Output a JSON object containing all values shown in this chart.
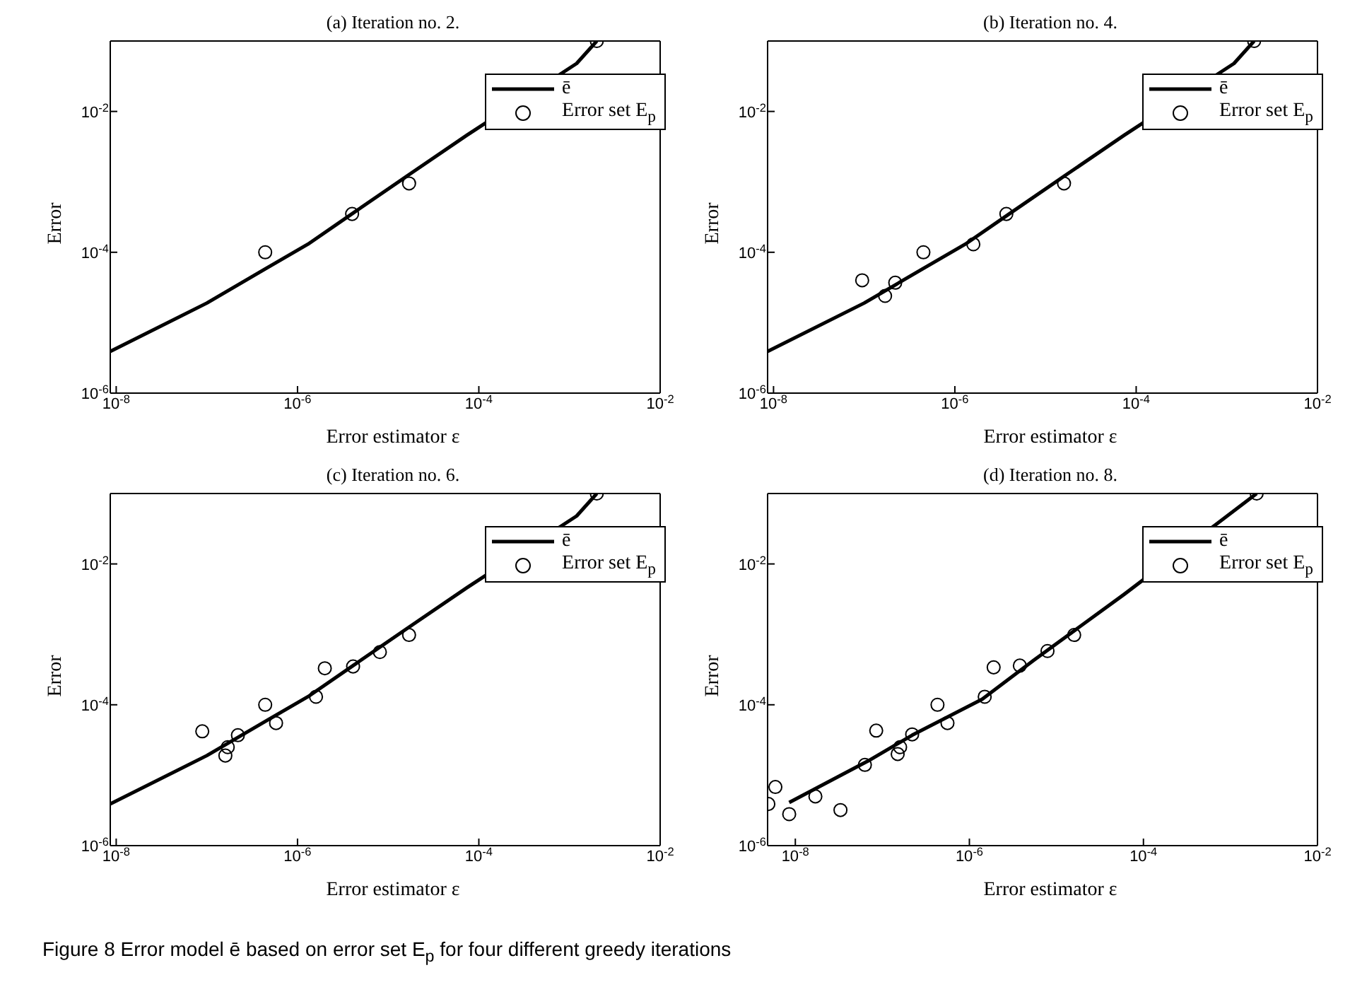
{
  "chart_data": [
    {
      "type": "line",
      "title": "(a) Iteration no. 2.",
      "xlabel": "Error estimator ε",
      "ylabel": "Error",
      "log": "xy",
      "grid": false,
      "legend": "top right",
      "xlim": [
        8.6e-09,
        0.01
      ],
      "ylim": [
        1e-06,
        0.1
      ],
      "xticks": [
        {
          "value": 1e-08,
          "label": "10$^{-8}$"
        },
        {
          "value": 1e-06,
          "label": "10$^{-6}$"
        },
        {
          "value": 0.0001,
          "label": "10$^{-4}$"
        },
        {
          "value": 0.01,
          "label": "10$^{-2}$"
        }
      ],
      "yticks": [
        {
          "value": 1e-06,
          "label": "10$^{-6}$"
        },
        {
          "value": 0.0001,
          "label": "10$^{-4}$"
        },
        {
          "value": 0.01,
          "label": "10$^{-2}$"
        }
      ],
      "series": [
        {
          "name": "ē",
          "type": "line",
          "color": "#000000",
          "line_style": "solid",
          "x": [
            8.6e-09,
            1e-07,
            4.4e-07,
            1.3e-06,
            4.1e-06,
            1.6e-05,
            7.4e-05,
            0.0012,
            0.002
          ],
          "values": [
            3.9e-06,
            1.9e-05,
            5.8e-05,
            0.00013,
            0.00036,
            0.0012,
            0.0046,
            0.048,
            0.1
          ]
        },
        {
          "name": "Error set E$_{p}$",
          "type": "scatter",
          "marker": "circle",
          "color": "#000000",
          "x": [
            4.4e-07,
            4e-06,
            1.7e-05,
            0.002
          ],
          "values": [
            0.0001,
            0.00035,
            0.00095,
            0.1
          ]
        }
      ]
    },
    {
      "type": "line",
      "title": "(b) Iteration no. 4.",
      "xlabel": "Error estimator ε",
      "ylabel": "Error",
      "log": "xy",
      "grid": false,
      "legend": "top right",
      "xlim": [
        8.6e-09,
        0.01
      ],
      "ylim": [
        1e-06,
        0.1
      ],
      "xticks": [
        {
          "value": 1e-08,
          "label": "10$^{-8}$"
        },
        {
          "value": 1e-06,
          "label": "10$^{-6}$"
        },
        {
          "value": 0.0001,
          "label": "10$^{-4}$"
        },
        {
          "value": 0.01,
          "label": "10$^{-2}$"
        }
      ],
      "yticks": [
        {
          "value": 1e-06,
          "label": "10$^{-6}$"
        },
        {
          "value": 0.0001,
          "label": "10$^{-4}$"
        },
        {
          "value": 0.01,
          "label": "10$^{-2}$"
        }
      ],
      "series": [
        {
          "name": "ē",
          "type": "line",
          "color": "#000000",
          "line_style": "solid",
          "x": [
            8.6e-09,
            1e-07,
            4.4e-07,
            1.3e-06,
            4.1e-06,
            1.6e-05,
            7.4e-05,
            0.0012,
            0.002
          ],
          "values": [
            3.9e-06,
            1.9e-05,
            5.8e-05,
            0.00013,
            0.00036,
            0.0012,
            0.0046,
            0.048,
            0.1
          ]
        },
        {
          "name": "Error set E$_{p}$",
          "type": "scatter",
          "marker": "circle",
          "color": "#000000",
          "x": [
            9.5e-08,
            1.7e-07,
            2.2e-07,
            4.5e-07,
            1.6e-06,
            3.7e-06,
            1.6e-05,
            0.002
          ],
          "values": [
            4e-05,
            2.4e-05,
            3.7e-05,
            0.0001,
            0.00013,
            0.00035,
            0.00095,
            0.1
          ]
        }
      ]
    },
    {
      "type": "line",
      "title": "(c) Iteration no. 6.",
      "xlabel": "Error estimator ε",
      "ylabel": "Error",
      "log": "xy",
      "grid": false,
      "legend": "top right",
      "xlim": [
        8.6e-09,
        0.01
      ],
      "ylim": [
        1e-06,
        0.1
      ],
      "xticks": [
        {
          "value": 1e-08,
          "label": "10$^{-8}$"
        },
        {
          "value": 1e-06,
          "label": "10$^{-6}$"
        },
        {
          "value": 0.0001,
          "label": "10$^{-4}$"
        },
        {
          "value": 0.01,
          "label": "10$^{-2}$"
        }
      ],
      "yticks": [
        {
          "value": 1e-06,
          "label": "10$^{-6}$"
        },
        {
          "value": 0.0001,
          "label": "10$^{-4}$"
        },
        {
          "value": 0.01,
          "label": "10$^{-2}$"
        }
      ],
      "series": [
        {
          "name": "ē",
          "type": "line",
          "color": "#000000",
          "line_style": "solid",
          "x": [
            8.6e-09,
            1e-07,
            4.4e-07,
            1.3e-06,
            4.1e-06,
            1.6e-05,
            7.4e-05,
            0.0012,
            0.002
          ],
          "values": [
            3.9e-06,
            1.9e-05,
            5.8e-05,
            0.00013,
            0.00036,
            0.0012,
            0.0046,
            0.048,
            0.1
          ]
        },
        {
          "name": "Error set E$_{p}$",
          "type": "scatter",
          "marker": "circle",
          "color": "#000000",
          "x": [
            8.9e-08,
            1.6e-07,
            1.7e-07,
            2.2e-07,
            4.4e-07,
            5.8e-07,
            1.6e-06,
            2e-06,
            4.1e-06,
            8.1e-06,
            1.7e-05,
            0.002
          ],
          "values": [
            4.2e-05,
            1.9e-05,
            2.5e-05,
            3.7e-05,
            0.0001,
            5.5e-05,
            0.00013,
            0.00033,
            0.00035,
            0.00056,
            0.00098,
            0.1
          ]
        }
      ]
    },
    {
      "type": "line",
      "title": "(d) Iteration no. 8.",
      "xlabel": "Error estimator ε",
      "ylabel": "Error",
      "log": "xy",
      "grid": false,
      "legend": "top right",
      "xlim": [
        4.8e-09,
        0.01
      ],
      "ylim": [
        1e-06,
        0.1
      ],
      "xticks": [
        {
          "value": 1e-08,
          "label": "10$^{-8}$"
        },
        {
          "value": 1e-06,
          "label": "10$^{-6}$"
        },
        {
          "value": 0.0001,
          "label": "10$^{-4}$"
        },
        {
          "value": 0.01,
          "label": "10$^{-2}$"
        }
      ],
      "yticks": [
        {
          "value": 1e-06,
          "label": "10$^{-6}$"
        },
        {
          "value": 0.0001,
          "label": "10$^{-4}$"
        },
        {
          "value": 0.01,
          "label": "10$^{-2}$"
        }
      ],
      "annotations": [
        "Figure 8  Error model ē based on error set E$_{p}$ for four different greedy iterations"
      ],
      "series": [
        {
          "name": "ē",
          "type": "line",
          "color": "#000000",
          "line_style": "solid",
          "x": [
            8.5e-09,
            6.9e-08,
            2.2e-07,
            1.4e-06,
            5.5e-06,
            6e-05,
            0.002
          ],
          "values": [
            4.1e-06,
            1.6e-05,
            3.7e-05,
            0.00012,
            0.00043,
            0.0037,
            0.1
          ]
        },
        {
          "name": "Error set E$_{p}$",
          "type": "scatter",
          "marker": "circle",
          "color": "#000000",
          "x": [
            4.9e-09,
            5.9e-09,
            8.5e-09,
            1.7e-08,
            3.3e-08,
            6.3e-08,
            8.5e-08,
            1.5e-07,
            1.6e-07,
            2.2e-07,
            4.3e-07,
            5.6e-07,
            1.5e-06,
            1.9e-06,
            3.8e-06,
            7.9e-06,
            1.6e-05,
            0.002
          ],
          "values": [
            3.9e-06,
            6.8e-06,
            2.8e-06,
            5e-06,
            3.2e-06,
            1.4e-05,
            4.3e-05,
            2e-05,
            2.5e-05,
            3.8e-05,
            0.0001,
            5.5e-05,
            0.00013,
            0.00034,
            0.00036,
            0.00058,
            0.00098,
            0.1
          ]
        }
      ]
    }
  ]
}
